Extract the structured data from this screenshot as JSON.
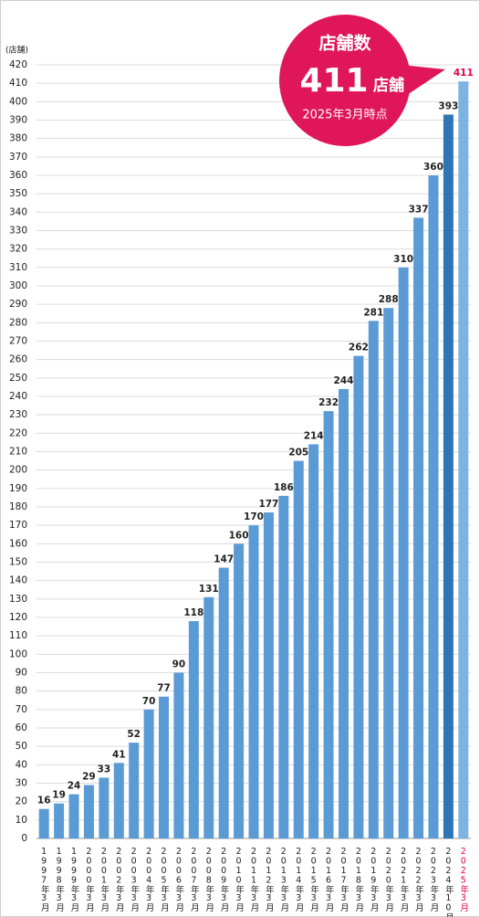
{
  "chart_data": {
    "type": "bar",
    "y_label": "(店舗)",
    "categories": [
      "1997年3月",
      "1998年3月",
      "1999年3月",
      "2000年3月",
      "2001年3月",
      "2002年3月",
      "2003年3月",
      "2004年3月",
      "2005年3月",
      "2006年3月",
      "2007年3月",
      "2008年3月",
      "2009年3月",
      "2010年3月",
      "2011年3月",
      "2012年3月",
      "2013年3月",
      "2014年3月",
      "2015年3月",
      "2016年3月",
      "2017年3月",
      "2018年3月",
      "2019年3月",
      "2020年3月",
      "2021年3月",
      "2022年3月",
      "2023年3月",
      "2024年10月",
      "2025年3月"
    ],
    "values": [
      16,
      19,
      24,
      29,
      33,
      41,
      52,
      70,
      77,
      90,
      118,
      131,
      147,
      160,
      170,
      177,
      186,
      205,
      214,
      232,
      244,
      262,
      281,
      288,
      310,
      337,
      360,
      393,
      411
    ],
    "color": "#5b9bd5",
    "highlight_colors": {
      "27": "#2e75b6",
      "28": "#7db3e3"
    },
    "highlight_label_color": {
      "28": "#e0004d"
    },
    "ylim": [
      0,
      420
    ],
    "yticks": [
      0,
      10,
      20,
      30,
      40,
      50,
      60,
      70,
      80,
      90,
      100,
      110,
      120,
      130,
      140,
      150,
      160,
      170,
      180,
      190,
      200,
      210,
      220,
      230,
      240,
      250,
      260,
      270,
      280,
      290,
      300,
      310,
      320,
      330,
      340,
      350,
      360,
      370,
      380,
      390,
      400,
      410,
      420
    ],
    "grid": true,
    "annotation": {
      "heading": "店舗数",
      "count": 411,
      "unit": "店舗",
      "date": "2025年3月時点",
      "color": "#e0165a"
    }
  }
}
